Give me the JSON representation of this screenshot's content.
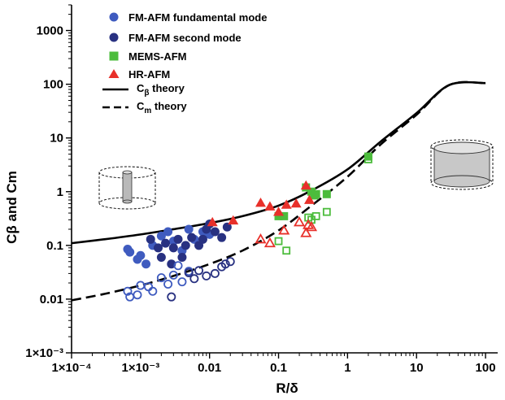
{
  "chart_data": {
    "type": "scatter",
    "xlabel": "R/δ",
    "ylabel": "Cβ and Cm",
    "x_scale": "log",
    "y_scale": "log",
    "xlim": [
      0.0001,
      150
    ],
    "ylim": [
      0.001,
      3000
    ],
    "x_ticks": [
      {
        "value": 0.0001,
        "label": "1×10⁻⁴"
      },
      {
        "value": 0.001,
        "label": "1×10⁻³"
      },
      {
        "value": 0.01,
        "label": "0.01"
      },
      {
        "value": 0.1,
        "label": "0.1"
      },
      {
        "value": 1,
        "label": "1"
      },
      {
        "value": 10,
        "label": "10"
      },
      {
        "value": 100,
        "label": "100"
      }
    ],
    "y_ticks": [
      {
        "value": 0.001,
        "label": "1×10⁻³"
      },
      {
        "value": 0.01,
        "label": "0.01"
      },
      {
        "value": 0.1,
        "label": "0.1"
      },
      {
        "value": 1,
        "label": "1"
      },
      {
        "value": 10,
        "label": "10"
      },
      {
        "value": 100,
        "label": "100"
      },
      {
        "value": 1000,
        "label": "1000"
      }
    ],
    "grid": false,
    "legend_position": "top-left",
    "legend": [
      {
        "label": "FM-AFM fundamental mode",
        "marker": "circle",
        "color": "#3f5bbf"
      },
      {
        "label": "FM-AFM second mode",
        "marker": "circle",
        "color": "#283181"
      },
      {
        "label": "MEMS-AFM",
        "marker": "square",
        "color": "#4cbc3c"
      },
      {
        "label": "HR-AFM",
        "marker": "triangle",
        "color": "#e8302a"
      },
      {
        "label_main": "C",
        "label_sub": "β",
        "label_rest": " theory",
        "line": "solid",
        "color": "#000000"
      },
      {
        "label_main": "C",
        "label_sub": "m",
        "label_rest": " theory",
        "line": "dashed",
        "color": "#000000"
      }
    ],
    "series": [
      {
        "legend_index": 0,
        "marker": "circle",
        "filled": true,
        "color": "#3f5bbf",
        "points": [
          [
            0.00065,
            0.085
          ],
          [
            0.0007,
            0.075
          ],
          [
            0.0009,
            0.055
          ],
          [
            0.001,
            0.065
          ],
          [
            0.0012,
            0.045
          ],
          [
            0.0015,
            0.1
          ],
          [
            0.002,
            0.15
          ],
          [
            0.0025,
            0.18
          ],
          [
            0.003,
            0.12
          ],
          [
            0.004,
            0.08
          ],
          [
            0.005,
            0.2
          ],
          [
            0.006,
            0.13
          ],
          [
            0.008,
            0.18
          ],
          [
            0.01,
            0.16
          ]
        ]
      },
      {
        "legend_index": 1,
        "marker": "circle",
        "filled": true,
        "color": "#283181",
        "points": [
          [
            0.0014,
            0.13
          ],
          [
            0.0018,
            0.09
          ],
          [
            0.002,
            0.06
          ],
          [
            0.0023,
            0.11
          ],
          [
            0.0028,
            0.045
          ],
          [
            0.003,
            0.09
          ],
          [
            0.0035,
            0.13
          ],
          [
            0.004,
            0.06
          ],
          [
            0.0045,
            0.1
          ],
          [
            0.0055,
            0.14
          ],
          [
            0.007,
            0.1
          ],
          [
            0.008,
            0.13
          ],
          [
            0.009,
            0.2
          ],
          [
            0.01,
            0.25
          ],
          [
            0.012,
            0.18
          ],
          [
            0.015,
            0.14
          ],
          [
            0.018,
            0.22
          ]
        ]
      },
      {
        "legend_index": 0,
        "marker": "circle",
        "filled": false,
        "color": "#3f5bbf",
        "points": [
          [
            0.00065,
            0.014
          ],
          [
            0.0007,
            0.011
          ],
          [
            0.0009,
            0.012
          ],
          [
            0.001,
            0.018
          ],
          [
            0.0013,
            0.017
          ],
          [
            0.0015,
            0.014
          ],
          [
            0.002,
            0.025
          ],
          [
            0.0025,
            0.019
          ],
          [
            0.003,
            0.028
          ],
          [
            0.0035,
            0.042
          ],
          [
            0.004,
            0.021
          ],
          [
            0.005,
            0.033
          ]
        ]
      },
      {
        "legend_index": 1,
        "marker": "circle",
        "filled": false,
        "color": "#283181",
        "points": [
          [
            0.0028,
            0.011
          ],
          [
            0.005,
            0.031
          ],
          [
            0.006,
            0.024
          ],
          [
            0.007,
            0.034
          ],
          [
            0.009,
            0.027
          ],
          [
            0.012,
            0.03
          ],
          [
            0.015,
            0.04
          ],
          [
            0.017,
            0.045
          ],
          [
            0.02,
            0.05
          ]
        ]
      },
      {
        "legend_index": 2,
        "marker": "square",
        "filled": true,
        "color": "#4cbc3c",
        "points": [
          [
            0.1,
            0.35
          ],
          [
            0.12,
            0.35
          ],
          [
            0.25,
            1.2
          ],
          [
            0.3,
            1.0
          ],
          [
            0.33,
            0.85
          ],
          [
            0.35,
            0.9
          ],
          [
            0.5,
            0.9
          ],
          [
            2.0,
            4.5
          ]
        ]
      },
      {
        "legend_index": 2,
        "marker": "square",
        "filled": false,
        "color": "#4cbc3c",
        "points": [
          [
            0.1,
            0.12
          ],
          [
            0.13,
            0.08
          ],
          [
            0.27,
            0.33
          ],
          [
            0.3,
            0.3
          ],
          [
            0.35,
            0.35
          ],
          [
            0.5,
            0.42
          ],
          [
            2.0,
            4.0
          ]
        ]
      },
      {
        "legend_index": 3,
        "marker": "triangle",
        "filled": true,
        "color": "#e8302a",
        "points": [
          [
            0.011,
            0.27
          ],
          [
            0.022,
            0.29
          ],
          [
            0.055,
            0.62
          ],
          [
            0.075,
            0.53
          ],
          [
            0.1,
            0.42
          ],
          [
            0.13,
            0.57
          ],
          [
            0.18,
            0.6
          ],
          [
            0.25,
            1.3
          ],
          [
            0.28,
            0.7
          ]
        ]
      },
      {
        "legend_index": 3,
        "marker": "triangle",
        "filled": false,
        "color": "#e8302a",
        "points": [
          [
            0.055,
            0.13
          ],
          [
            0.075,
            0.11
          ],
          [
            0.12,
            0.19
          ],
          [
            0.2,
            0.27
          ],
          [
            0.25,
            0.17
          ],
          [
            0.27,
            0.24
          ],
          [
            0.3,
            0.22
          ]
        ]
      }
    ],
    "theory_curves": [
      {
        "legend_index": 4,
        "line": "solid",
        "points": [
          [
            0.0001,
            0.11
          ],
          [
            0.0003,
            0.13
          ],
          [
            0.001,
            0.16
          ],
          [
            0.003,
            0.2
          ],
          [
            0.01,
            0.26
          ],
          [
            0.03,
            0.35
          ],
          [
            0.1,
            0.55
          ],
          [
            0.3,
            1.05
          ],
          [
            1,
            2.6
          ],
          [
            3,
            8.5
          ],
          [
            10,
            29
          ],
          [
            30,
            97
          ],
          [
            100,
            105
          ]
        ]
      },
      {
        "legend_index": 5,
        "line": "dashed",
        "points": [
          [
            0.0001,
            0.0095
          ],
          [
            0.0003,
            0.0125
          ],
          [
            0.001,
            0.018
          ],
          [
            0.003,
            0.027
          ],
          [
            0.01,
            0.045
          ],
          [
            0.03,
            0.08
          ],
          [
            0.1,
            0.19
          ],
          [
            0.3,
            0.55
          ],
          [
            1,
            1.9
          ],
          [
            3,
            7.5
          ],
          [
            10,
            27
          ],
          [
            30,
            97
          ],
          [
            100,
            105
          ]
        ]
      }
    ]
  }
}
